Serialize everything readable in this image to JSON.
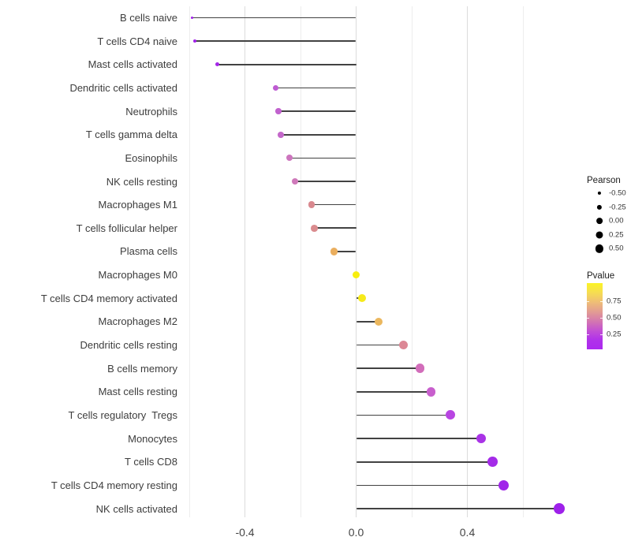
{
  "chart_data": {
    "type": "scatter",
    "style": "horizontal-lollipop",
    "title": "",
    "xlabel": "",
    "ylabel": "",
    "xlim": [
      -0.62,
      0.78
    ],
    "grid": "vertical only",
    "background": "#ffffff",
    "stick_color": "#424242",
    "x_major_ticks": [
      {
        "value": -0.4,
        "label": "-0.4"
      },
      {
        "value": 0.0,
        "label": "0.0"
      },
      {
        "value": 0.4,
        "label": "0.4"
      }
    ],
    "x_minor_ticks": [
      -0.6,
      -0.2,
      0.2,
      0.6
    ],
    "points": [
      {
        "label": "B cells naive",
        "pearson": -0.59,
        "color": "#A11FE9"
      },
      {
        "label": "T cells CD4 naive",
        "pearson": -0.58,
        "color": "#A121E9"
      },
      {
        "label": "Mast cells activated",
        "pearson": -0.5,
        "color": "#A527E8"
      },
      {
        "label": "Dendritic cells activated",
        "pearson": -0.29,
        "color": "#BE5BD2"
      },
      {
        "label": "Neutrophils",
        "pearson": -0.28,
        "color": "#C162CE"
      },
      {
        "label": "T cells gamma delta",
        "pearson": -0.27,
        "color": "#C468CA"
      },
      {
        "label": "Eosinophils",
        "pearson": -0.24,
        "color": "#CD75BE"
      },
      {
        "label": "NK cells resting",
        "pearson": -0.22,
        "color": "#CF79BA"
      },
      {
        "label": "Macrophages M1",
        "pearson": -0.16,
        "color": "#D9898F"
      },
      {
        "label": "T cells follicular helper",
        "pearson": -0.15,
        "color": "#DA8B8E"
      },
      {
        "label": "Plasma cells",
        "pearson": -0.08,
        "color": "#EAAE5E"
      },
      {
        "label": "Macrophages M0",
        "pearson": 0.0,
        "color": "#F7EE0E"
      },
      {
        "label": "T cells CD4 memory activated",
        "pearson": 0.02,
        "color": "#F6EA1A"
      },
      {
        "label": "Macrophages M2",
        "pearson": 0.08,
        "color": "#EBB75E"
      },
      {
        "label": "Dendritic cells resting",
        "pearson": 0.17,
        "color": "#DC8795"
      },
      {
        "label": "B cells memory",
        "pearson": 0.23,
        "color": "#D26DBA"
      },
      {
        "label": "Mast cells resting",
        "pearson": 0.27,
        "color": "#C85FCD"
      },
      {
        "label": "T cells regulatory  Tregs",
        "pearson": 0.34,
        "color": "#B845E2"
      },
      {
        "label": "Monocytes",
        "pearson": 0.45,
        "color": "#A933E6"
      },
      {
        "label": "T cells CD8",
        "pearson": 0.49,
        "color": "#A42BE8"
      },
      {
        "label": "T cells CD4 memory resting",
        "pearson": 0.53,
        "color": "#A025E9"
      },
      {
        "label": "NK cells activated",
        "pearson": 0.73,
        "color": "#9E21EA"
      }
    ],
    "legend_size": {
      "title": "Pearson",
      "entries": [
        {
          "value": -0.5,
          "label": "-0.50"
        },
        {
          "value": -0.25,
          "label": "-0.25"
        },
        {
          "value": 0.0,
          "label": "0.00"
        },
        {
          "value": 0.25,
          "label": "0.25"
        },
        {
          "value": 0.5,
          "label": "0.50"
        }
      ],
      "dot_color": "#000000"
    },
    "legend_color": {
      "title": "Pvalue",
      "tick_labels": [
        {
          "value": 0.75,
          "label": "0.75"
        },
        {
          "value": 0.5,
          "label": "0.50"
        },
        {
          "value": 0.25,
          "label": "0.25"
        }
      ],
      "gradient_stops_top_to_bottom": [
        "#FBF425",
        "#F6DD52",
        "#EFBE76",
        "#E39D92",
        "#D478AF",
        "#C351D3",
        "#B032EA",
        "#AC29EF"
      ]
    }
  }
}
